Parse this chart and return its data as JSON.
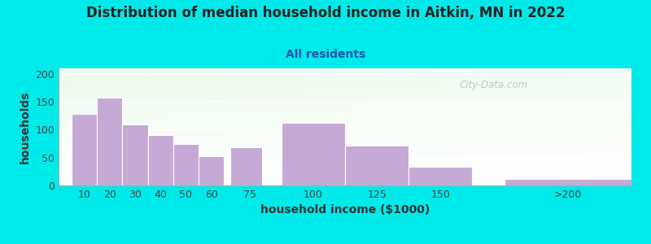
{
  "title": "Distribution of median household income in Aitkin, MN in 2022",
  "subtitle": "All residents",
  "xlabel": "household income ($1000)",
  "ylabel": "households",
  "bar_color": "#c4aad4",
  "bar_edge_color": "#b8a0cc",
  "background_color": "#00eaea",
  "watermark": "City-Data.com",
  "ylim": [
    0,
    210
  ],
  "yticks": [
    0,
    50,
    100,
    150,
    200
  ],
  "bar_lefts": [
    5,
    15,
    25,
    35,
    45,
    55,
    67.5,
    87.5,
    112.5,
    137.5,
    175
  ],
  "bar_heights": [
    128,
    158,
    110,
    90,
    75,
    52,
    68,
    113,
    72,
    33,
    12
  ],
  "bar_widths": [
    10,
    10,
    10,
    10,
    10,
    10,
    12.5,
    25,
    25,
    25,
    50
  ],
  "xtick_positions": [
    10,
    20,
    30,
    40,
    50,
    60,
    75,
    100,
    125,
    150,
    200
  ],
  "xtick_labels": [
    "10",
    "20",
    "30",
    "40",
    "50",
    "60",
    "75",
    "100",
    "125",
    "150",
    ">200"
  ],
  "xlim": [
    0,
    225
  ],
  "title_fontsize": 12,
  "subtitle_fontsize": 10,
  "axis_label_fontsize": 10,
  "tick_fontsize": 9
}
